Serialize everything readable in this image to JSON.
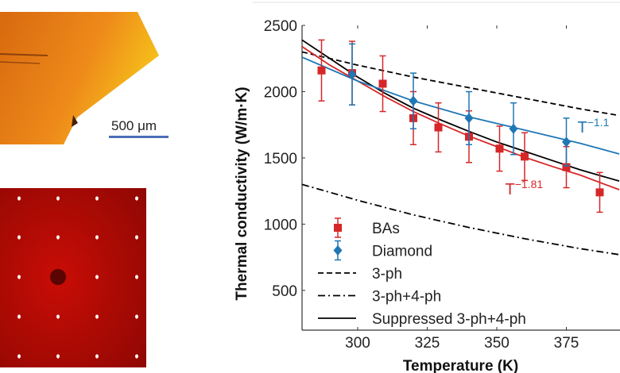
{
  "panels": {
    "crystal_image": {
      "scale_bar_label": "500 μm",
      "scale_bar_color": "#4a6fb5"
    },
    "diffraction_image": {}
  },
  "chart_data": {
    "type": "line",
    "xlabel": "Temperature (K)",
    "ylabel": "Thermal conductivity (W/m·K)",
    "xlim": [
      280,
      394
    ],
    "ylim": [
      200,
      2500
    ],
    "xticks": [
      300,
      325,
      350,
      375
    ],
    "yticks": [
      500,
      1000,
      1500,
      2000,
      2500
    ],
    "grid": false,
    "legend_placement": "bottom-left",
    "series": [
      {
        "name": "BAs",
        "kind": "points",
        "marker": "square",
        "color": "#d62728",
        "x": [
          287,
          298,
          309,
          320,
          329,
          340,
          351,
          360,
          375,
          387
        ],
        "y": [
          2160,
          2140,
          2060,
          1800,
          1730,
          1660,
          1570,
          1510,
          1430,
          1240
        ],
        "err": [
          230,
          240,
          210,
          200,
          185,
          195,
          170,
          180,
          155,
          150
        ]
      },
      {
        "name": "Diamond",
        "kind": "points",
        "marker": "diamond",
        "color": "#1f77b4",
        "x": [
          298,
          320,
          340,
          356,
          375
        ],
        "y": [
          2130,
          1930,
          1800,
          1720,
          1620
        ],
        "err": [
          230,
          210,
          200,
          195,
          180
        ]
      },
      {
        "name": "3-ph",
        "kind": "line",
        "dash": "dashed",
        "color": "#000000",
        "x": [
          280,
          300,
          320,
          340,
          360,
          380,
          394
        ],
        "y": [
          2300,
          2200,
          2110,
          2030,
          1950,
          1870,
          1820
        ]
      },
      {
        "name": "3-ph+4-ph",
        "kind": "line",
        "dash": "dashdot",
        "color": "#000000",
        "x": [
          280,
          300,
          320,
          340,
          360,
          380,
          394
        ],
        "y": [
          1300,
          1180,
          1070,
          975,
          890,
          815,
          770
        ]
      },
      {
        "name": "Suppressed 3-ph+4-ph",
        "kind": "line",
        "dash": "solid",
        "color": "#000000",
        "x": [
          280,
          290,
          300,
          310,
          320,
          330,
          340,
          350,
          360,
          370,
          380,
          394
        ],
        "y": [
          2390,
          2250,
          2110,
          1985,
          1875,
          1785,
          1700,
          1620,
          1550,
          1480,
          1410,
          1325
        ]
      },
      {
        "kind": "line",
        "dash": "solid",
        "color": "#d62728",
        "x": [
          280,
          290,
          300,
          310,
          320,
          330,
          340,
          350,
          360,
          370,
          380,
          394
        ],
        "y": [
          2340,
          2200,
          2080,
          1960,
          1850,
          1755,
          1665,
          1585,
          1505,
          1435,
          1370,
          1260
        ]
      },
      {
        "kind": "line",
        "dash": "solid",
        "color": "#1f77b4",
        "x": [
          280,
          300,
          320,
          340,
          360,
          380,
          394
        ],
        "y": [
          2260,
          2080,
          1930,
          1810,
          1710,
          1610,
          1530
        ]
      }
    ],
    "annotations": [
      {
        "text": "T",
        "sup": "−1.81",
        "color": "#d62728",
        "x": 353,
        "y": 1225
      },
      {
        "text": "T",
        "sup": "−1.1",
        "color": "#1f77b4",
        "x": 379,
        "y": 1690
      }
    ]
  }
}
